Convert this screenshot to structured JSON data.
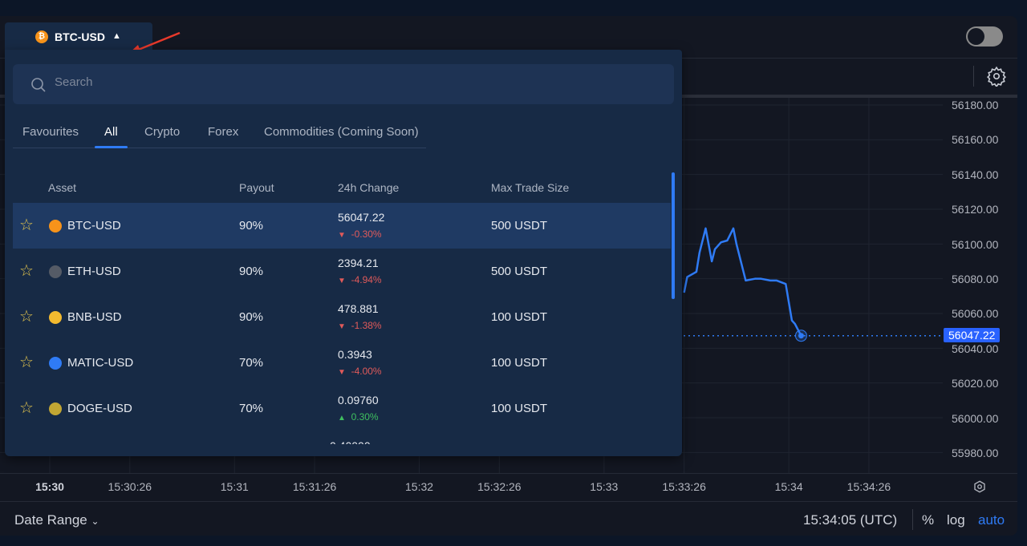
{
  "header": {
    "symbol": "BTC-USD",
    "symbol_icon": "bitcoin-icon",
    "caret": "▲",
    "toggle_on": false
  },
  "dropdown": {
    "search_placeholder": "Search",
    "tabs": [
      {
        "label": "Favourites"
      },
      {
        "label": "All",
        "active": true
      },
      {
        "label": "Crypto"
      },
      {
        "label": "Forex"
      },
      {
        "label": "Commodities (Coming Soon)"
      }
    ],
    "columns": {
      "asset": "Asset",
      "payout": "Payout",
      "change": "24h Change",
      "max": "Max Trade Size"
    },
    "rows": [
      {
        "asset": "BTC-USD",
        "icon": "bitcoin-icon",
        "color": "#f7931a",
        "payout": "90%",
        "price": "56047.22",
        "change": "-0.30%",
        "dir": "down",
        "max": "500 USDT",
        "selected": true
      },
      {
        "asset": "ETH-USD",
        "icon": "ethereum-icon",
        "color": "#555b66",
        "payout": "90%",
        "price": "2394.21",
        "change": "-4.94%",
        "dir": "down",
        "max": "500 USDT"
      },
      {
        "asset": "BNB-USD",
        "icon": "bnb-icon",
        "color": "#f3ba2f",
        "payout": "90%",
        "price": "478.881",
        "change": "-1.38%",
        "dir": "down",
        "max": "100 USDT"
      },
      {
        "asset": "MATIC-USD",
        "icon": "polygon-icon",
        "color": "#2f7bf5",
        "payout": "70%",
        "price": "0.3943",
        "change": "-4.00%",
        "dir": "down",
        "max": "100 USDT"
      },
      {
        "asset": "DOGE-USD",
        "icon": "doge-icon",
        "color": "#c2a633",
        "payout": "70%",
        "price": "0.09760",
        "change": "0.30%",
        "dir": "up",
        "max": "100 USDT"
      }
    ]
  },
  "chart": {
    "price_ticks": [
      "56180.00",
      "56160.00",
      "56140.00",
      "56120.00",
      "56100.00",
      "56080.00",
      "56060.00",
      "56040.00",
      "56020.00",
      "56000.00",
      "55980.00"
    ],
    "current_price": "56047.22",
    "time_ticks": [
      "15:30",
      "15:30:26",
      "15:31",
      "15:31:26",
      "15:32",
      "15:32:26",
      "15:33",
      "15:33:26",
      "15:34",
      "15:34:26"
    ],
    "line_color": "#2f7bf5",
    "series": [
      [
        "15:33:26",
        56072
      ],
      [
        "15:33:27",
        56081
      ],
      [
        "15:33:29",
        56083
      ],
      [
        "15:33:30",
        56084
      ],
      [
        "15:33:31",
        56095
      ],
      [
        "15:33:33",
        56109
      ],
      [
        "15:33:35",
        56090
      ],
      [
        "15:33:36",
        56097
      ],
      [
        "15:33:38",
        56101
      ],
      [
        "15:33:40",
        56102
      ],
      [
        "15:33:42",
        56109
      ],
      [
        "15:33:43",
        56100
      ],
      [
        "15:33:46",
        56079
      ],
      [
        "15:33:49",
        56080
      ],
      [
        "15:33:51",
        56080
      ],
      [
        "15:33:54",
        56079
      ],
      [
        "15:33:56",
        56079
      ],
      [
        "15:33:59",
        56077
      ],
      [
        "15:34:01",
        56056
      ],
      [
        "15:34:02",
        56054
      ],
      [
        "15:34:04",
        56047.22
      ]
    ]
  },
  "footer": {
    "date_range": "Date Range",
    "time": "15:34:05 (UTC)",
    "percent": "%",
    "log": "log",
    "auto": "auto"
  },
  "colors": {
    "down": "#e05a5a",
    "up": "#3fbf5f",
    "accent": "#2f7bf5"
  }
}
